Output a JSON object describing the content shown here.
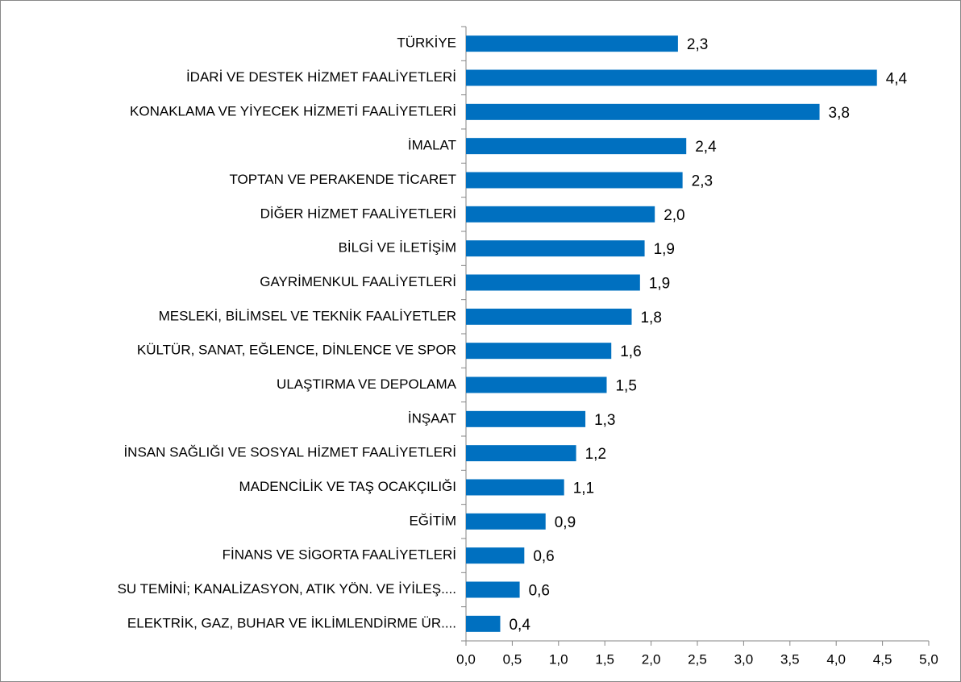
{
  "chart_data": {
    "type": "bar",
    "orientation": "horizontal",
    "color": "#0070c0",
    "categories": [
      "TÜRKİYE",
      "İDARİ VE DESTEK HİZMET FAALİYETLERİ",
      "KONAKLAMA VE YİYECEK HİZMETİ FAALİYETLERİ",
      "İMALAT",
      "TOPTAN VE PERAKENDE TİCARET",
      "DİĞER HİZMET FAALİYETLERİ",
      "BİLGİ VE İLETİŞİM",
      "GAYRİMENKUL FAALİYETLERİ",
      "MESLEKİ, BİLİMSEL VE TEKNİK FAALİYETLER",
      "KÜLTÜR, SANAT, EĞLENCE, DİNLENCE VE SPOR",
      "ULAŞTIRMA VE DEPOLAMA",
      "İNŞAAT",
      "İNSAN SAĞLIĞI VE SOSYAL HİZMET FAALİYETLERİ",
      "MADENCİLİK VE TAŞ OCAKÇILIĞI",
      "EĞİTİM",
      "FİNANS VE SİGORTA FAALİYETLERİ",
      "SU TEMİNİ; KANALİZASYON, ATIK YÖN. VE İYİLEŞ....",
      "ELEKTRİK, GAZ, BUHAR VE İKLİMLENDİRME ÜR...."
    ],
    "values": [
      2.29,
      4.44,
      3.82,
      2.38,
      2.34,
      2.04,
      1.93,
      1.88,
      1.79,
      1.57,
      1.52,
      1.29,
      1.19,
      1.06,
      0.86,
      0.63,
      0.58,
      0.37
    ],
    "value_labels": [
      "2,3",
      "4,4",
      "3,8",
      "2,4",
      "2,3",
      "2,0",
      "1,9",
      "1,9",
      "1,8",
      "1,6",
      "1,5",
      "1,3",
      "1,2",
      "1,1",
      "0,9",
      "0,6",
      "0,6",
      "0,4"
    ],
    "xlim": [
      0,
      5
    ],
    "xticks": [
      {
        "value": 0,
        "label": "0,0"
      },
      {
        "value": 0.5,
        "label": "0,5"
      },
      {
        "value": 1,
        "label": "1,0"
      },
      {
        "value": 1.5,
        "label": "1,5"
      },
      {
        "value": 2,
        "label": "2,0"
      },
      {
        "value": 2.5,
        "label": "2,5"
      },
      {
        "value": 3,
        "label": "3,0"
      },
      {
        "value": 3.5,
        "label": "3,5"
      },
      {
        "value": 4,
        "label": "4,0"
      },
      {
        "value": 4.5,
        "label": "4,5"
      },
      {
        "value": 5,
        "label": "5,0"
      }
    ],
    "grid": false
  }
}
